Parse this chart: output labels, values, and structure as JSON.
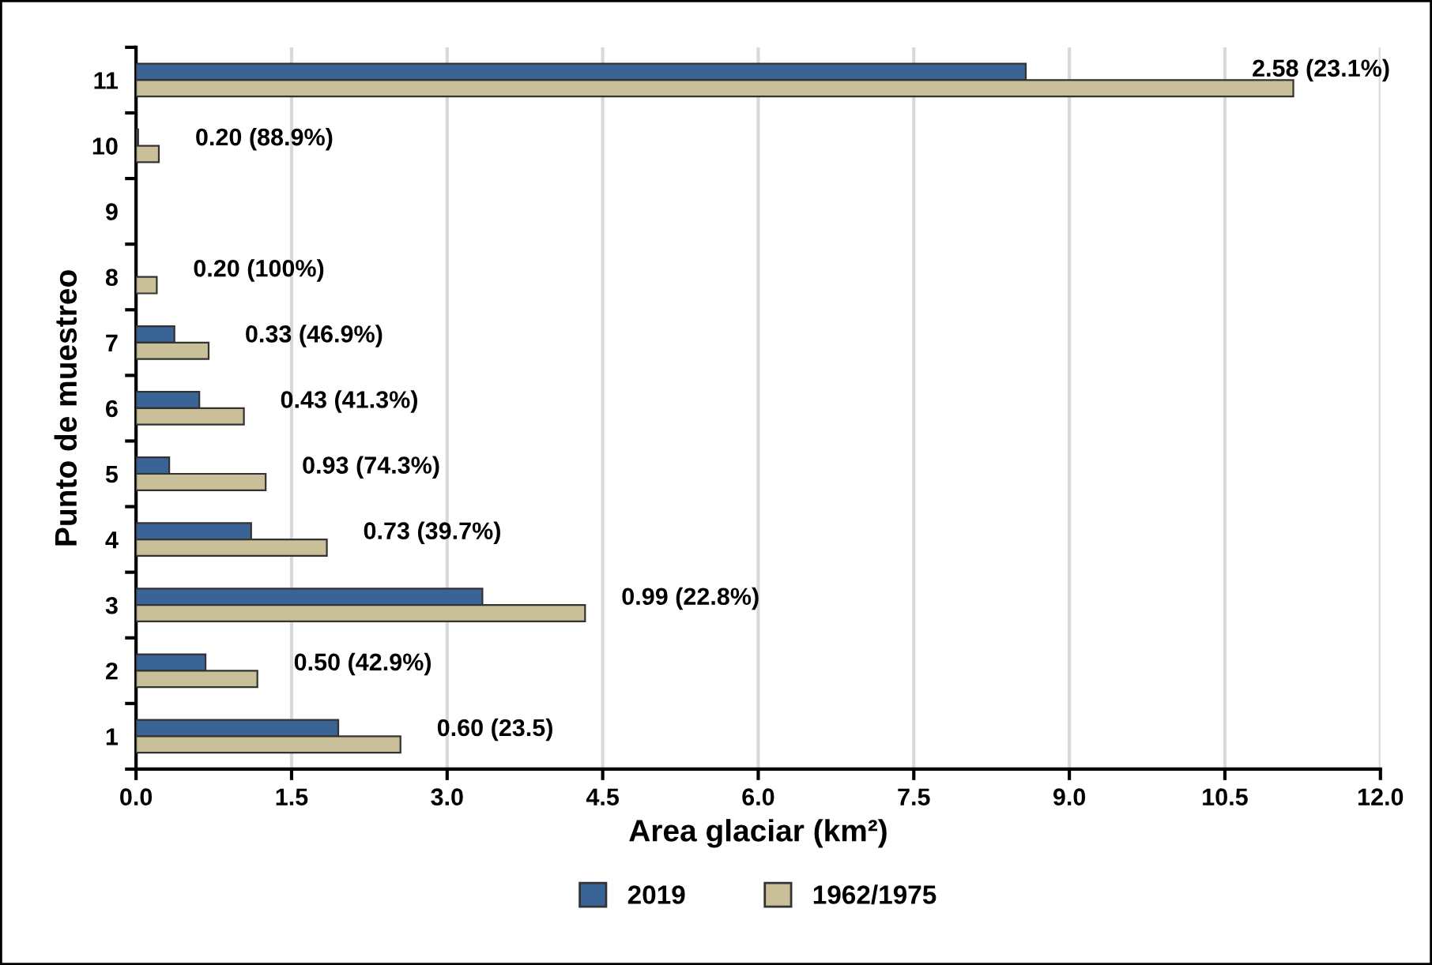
{
  "chart_data": {
    "type": "bar",
    "orientation": "horizontal",
    "xlabel": "Area glaciar (km²)",
    "ylabel": "Punto de muestreo",
    "categories": [
      "11",
      "10",
      "9",
      "8",
      "7",
      "6",
      "5",
      "4",
      "3",
      "2",
      "1"
    ],
    "series": [
      {
        "name": "2019",
        "color": "#3a6496",
        "values": [
          8.58,
          0.02,
          null,
          null,
          0.37,
          0.61,
          0.32,
          1.11,
          3.34,
          0.67,
          1.95
        ]
      },
      {
        "name": "1962/1975",
        "color": "#c9bf99",
        "values": [
          11.16,
          0.22,
          null,
          0.2,
          0.7,
          1.04,
          1.25,
          1.84,
          4.33,
          1.17,
          2.55
        ]
      }
    ],
    "annotations": [
      {
        "text": "2.58 (23.1%)",
        "x": 11.16,
        "y": "11"
      },
      {
        "text": "0.20 (88.9%)",
        "x": 0.22,
        "y": "10"
      },
      {
        "text": "0.20 (100%)",
        "x": 0.2,
        "y": "8"
      },
      {
        "text": "0.33 (46.9%)",
        "x": 0.7,
        "y": "7"
      },
      {
        "text": "0.43 (41.3%)",
        "x": 1.04,
        "y": "6"
      },
      {
        "text": "0.93 (74.3%)",
        "x": 1.25,
        "y": "5"
      },
      {
        "text": "0.73 (39.7%)",
        "x": 1.84,
        "y": "4"
      },
      {
        "text": "0.99 (22.8%)",
        "x": 4.33,
        "y": "3"
      },
      {
        "text": "0.50 (42.9%)",
        "x": 1.17,
        "y": "2"
      },
      {
        "text": "0.60 (23.5)",
        "x": 2.55,
        "y": "1"
      }
    ],
    "xlim": [
      0,
      12
    ],
    "xticks": [
      {
        "value": 0,
        "label": "0.0"
      },
      1.5,
      {
        "value": 3,
        "label": "3.0"
      },
      4.5,
      {
        "value": 6,
        "label": "6.0"
      },
      7.5,
      {
        "value": 9,
        "label": "9.0"
      },
      10.5,
      {
        "value": 12,
        "label": "12.0"
      }
    ],
    "grid": "x",
    "legend": "bottom"
  }
}
